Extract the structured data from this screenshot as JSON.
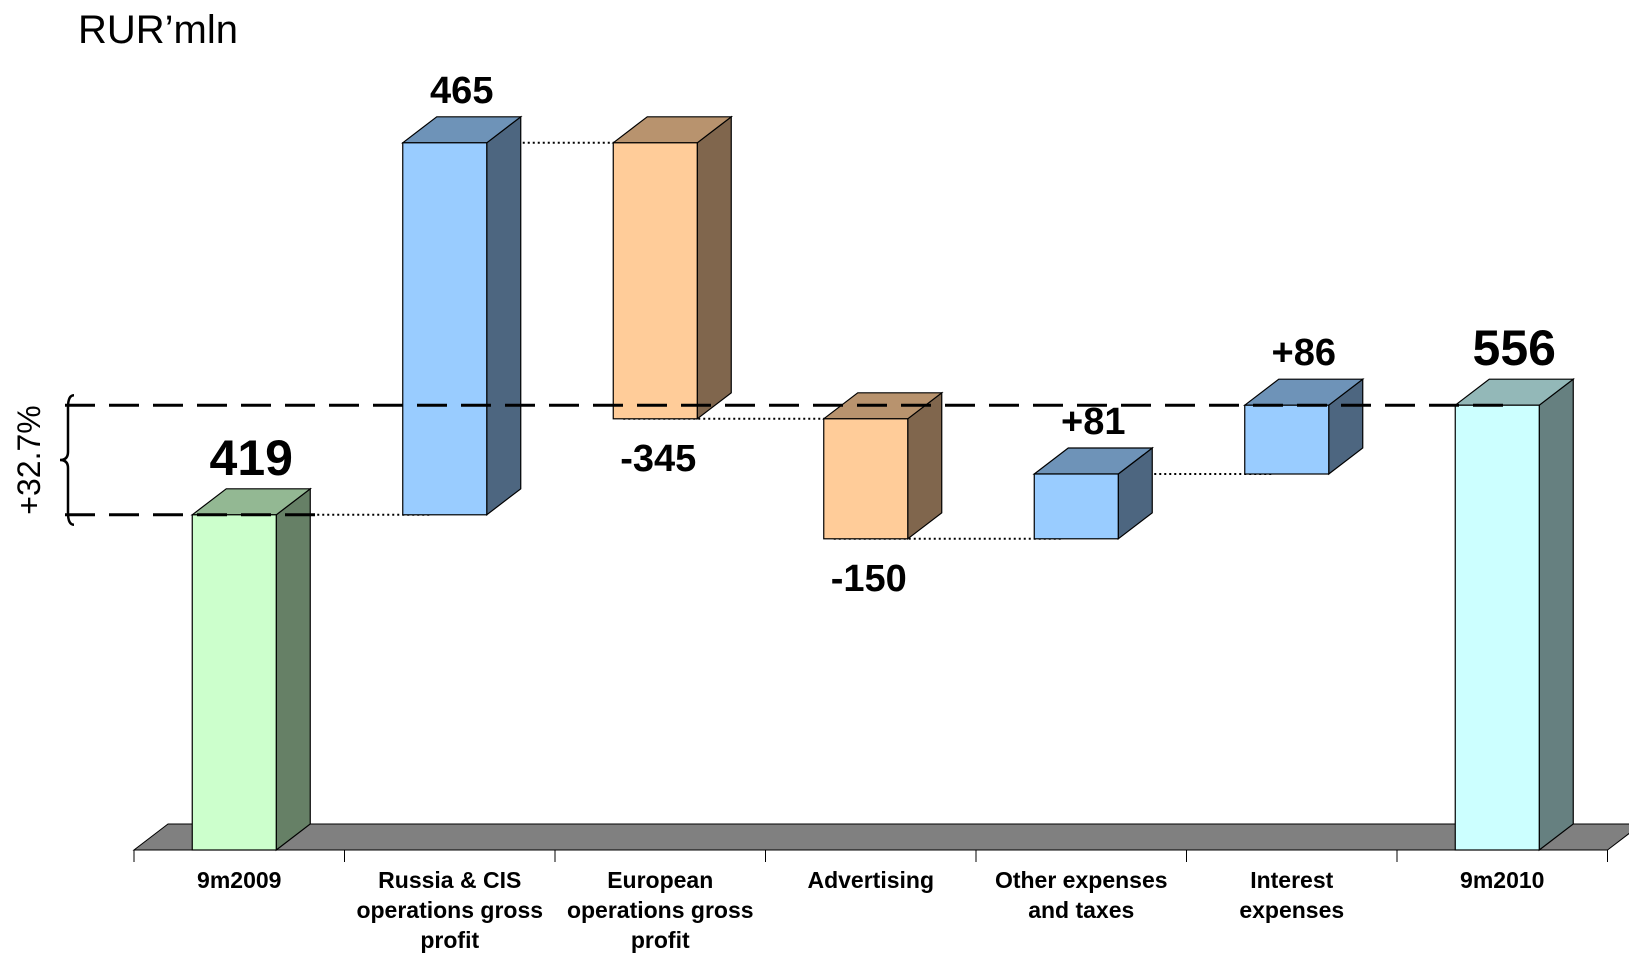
{
  "unit_label": "RUR’mln",
  "growth_label": "+32.7%",
  "colors": {
    "start": "#ccffcc",
    "end": "#ccffff",
    "increase": "#99ccff",
    "decrease": "#ffcc99",
    "floor": "#808080"
  },
  "chart_data": {
    "type": "bar",
    "subtype": "waterfall-3d",
    "categories": [
      [
        "9m2009"
      ],
      [
        "Russia & CIS",
        "operations gross",
        "profit"
      ],
      [
        "European",
        "operations gross",
        "profit"
      ],
      [
        "Advertising"
      ],
      [
        "Other expenses",
        "and taxes"
      ],
      [
        "Interest",
        "expenses"
      ],
      [
        "9m2010"
      ]
    ],
    "values": [
      419,
      465,
      -345,
      -150,
      81,
      86,
      556
    ],
    "kinds": [
      "total",
      "delta",
      "delta",
      "delta",
      "delta",
      "delta",
      "total"
    ],
    "value_labels": [
      "419",
      "465",
      "-345",
      "-150",
      "+81",
      "+86",
      "556"
    ],
    "ylim": [
      0,
      900
    ],
    "grid": false,
    "legend": "none"
  }
}
